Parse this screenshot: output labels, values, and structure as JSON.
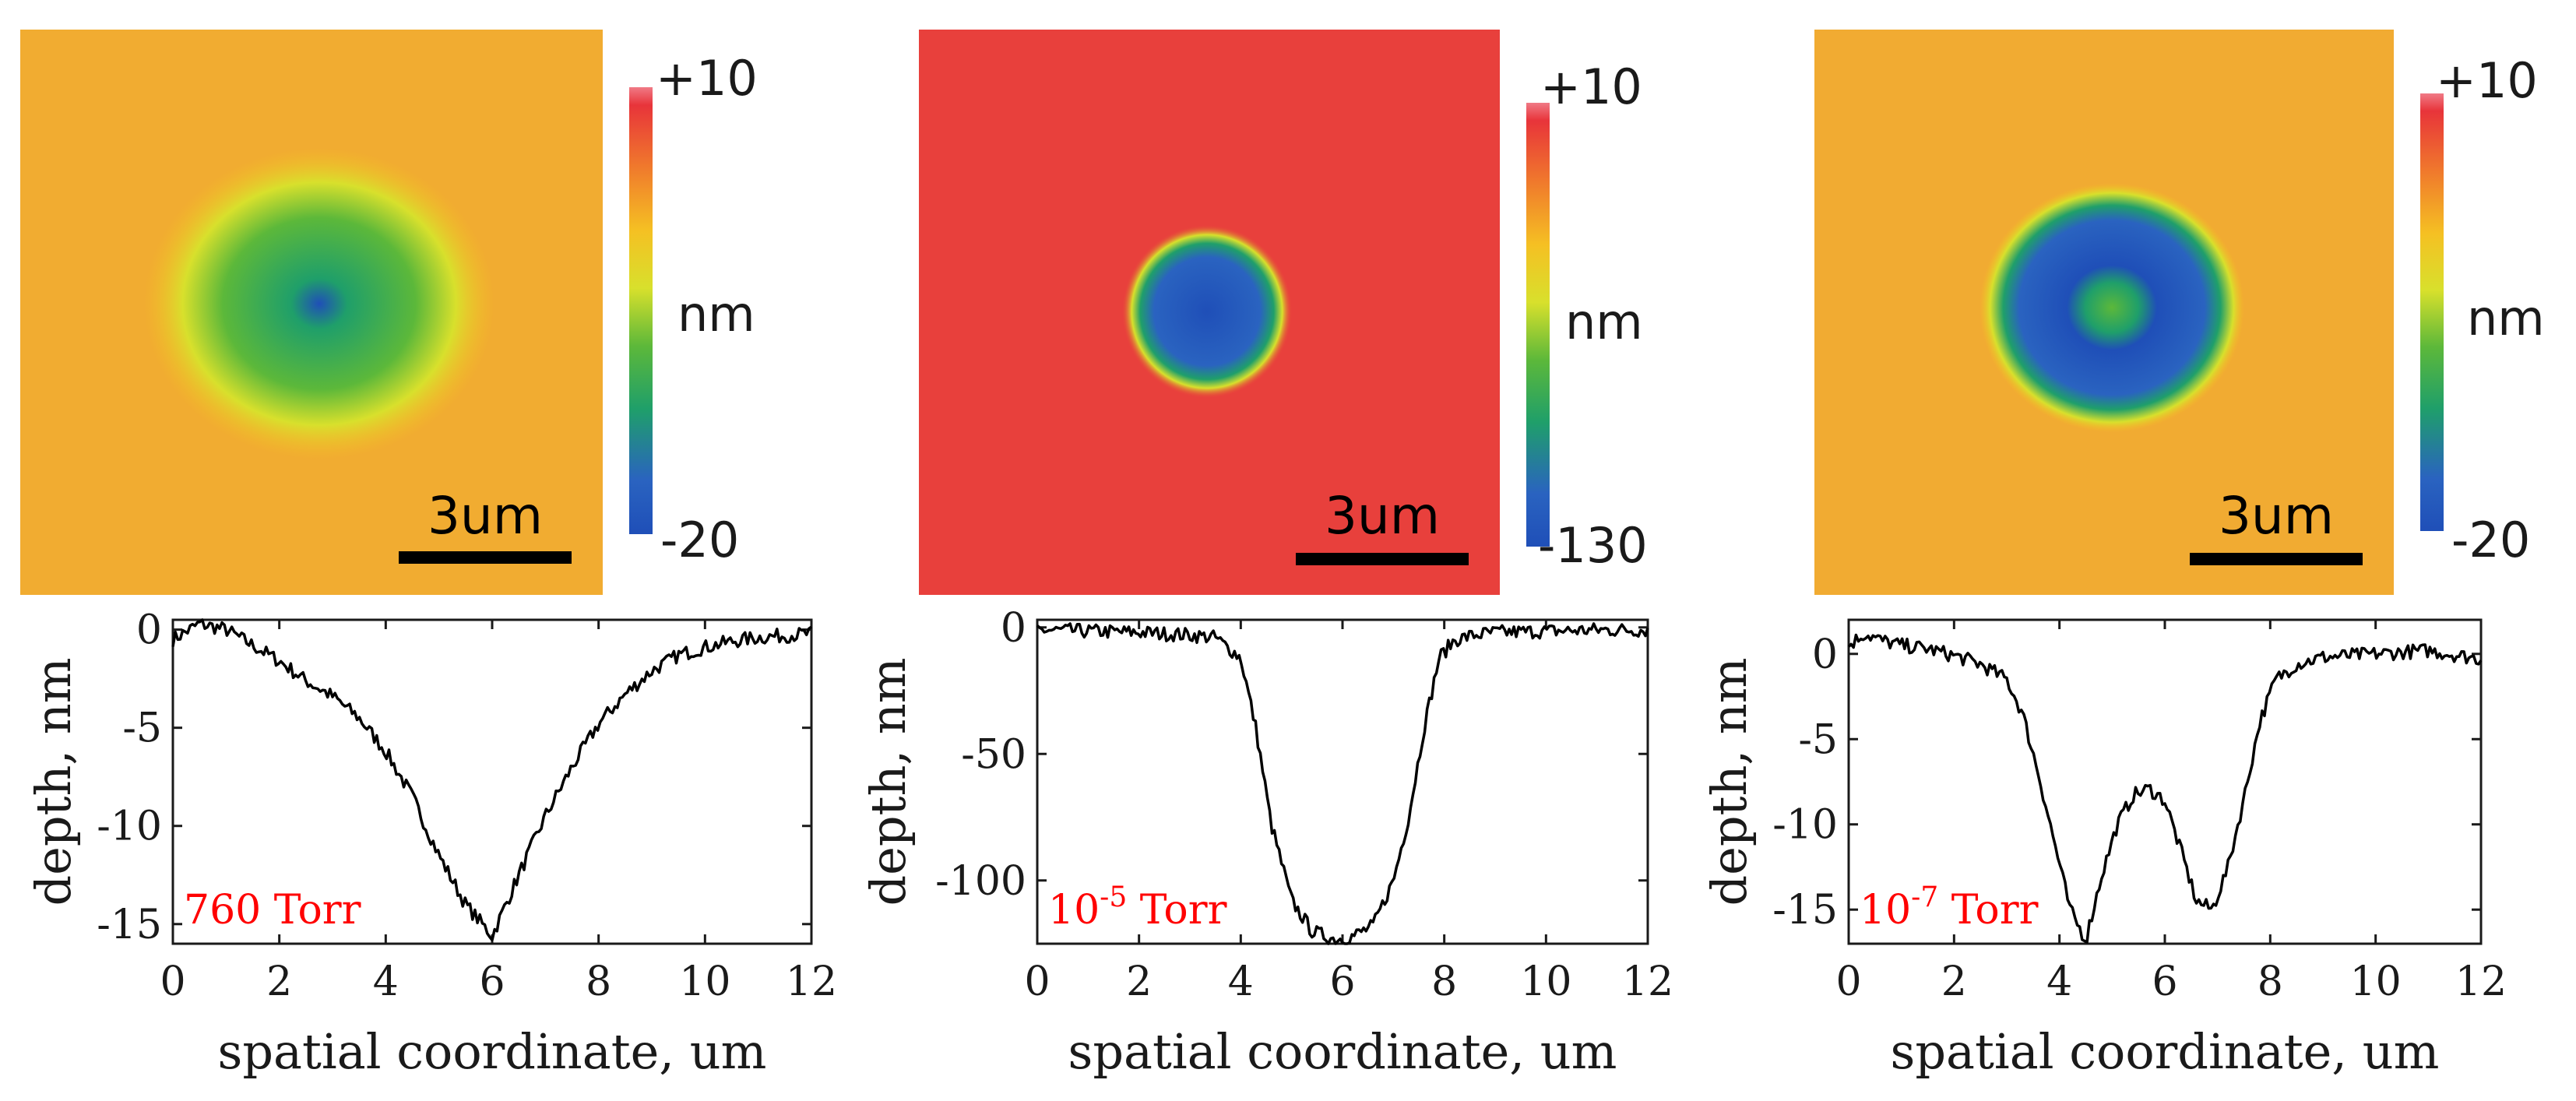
{
  "chart_data": [
    {
      "type": "heatmap",
      "title": "",
      "colorbar": {
        "max_label": "+10",
        "min_label": "-20",
        "unit_label": "nm",
        "range": [
          -20,
          10
        ]
      },
      "scale_bar_label": "3um",
      "feature": {
        "shape": "shallow broad depression with deeper center",
        "background_value": 2
      }
    },
    {
      "type": "heatmap",
      "title": "",
      "colorbar": {
        "max_label": "+10",
        "min_label": "-130",
        "unit_label": "nm",
        "range": [
          -130,
          10
        ]
      },
      "scale_bar_label": "3um",
      "feature": {
        "shape": "deep compact crater",
        "background_value": 8
      }
    },
    {
      "type": "heatmap",
      "title": "",
      "colorbar": {
        "max_label": "+10",
        "min_label": "-20",
        "unit_label": "nm",
        "range": [
          -20,
          10
        ]
      },
      "scale_bar_label": "3um",
      "feature": {
        "shape": "ring-shaped crater with raised center",
        "background_value": 2
      }
    },
    {
      "type": "line",
      "annotation": {
        "base": "760",
        "sup": "",
        "suffix": " Torr"
      },
      "xlabel": "spatial coordinate, um",
      "ylabel": "depth, nm",
      "xlim": [
        0,
        12
      ],
      "ylim": [
        -16,
        0.5
      ],
      "xticks": [
        0,
        2,
        4,
        6,
        8,
        10,
        12
      ],
      "xtick_labels": [
        "0",
        "2",
        "4",
        "6",
        "8",
        "10",
        "12"
      ],
      "yticks": [
        0,
        -5,
        -10,
        -15
      ],
      "ytick_labels": [
        "0",
        "-5",
        "-10",
        "-15"
      ],
      "series": [
        {
          "name": "760 Torr",
          "x": [
            0,
            0.5,
            1.0,
            1.5,
            2.0,
            2.5,
            3.0,
            3.5,
            4.0,
            4.5,
            5.0,
            5.5,
            6.0,
            6.5,
            7.0,
            7.5,
            8.0,
            8.5,
            9.0,
            9.5,
            10.0,
            10.5,
            11.0,
            11.5,
            12.0
          ],
          "y": [
            -0.5,
            0.3,
            0.0,
            -0.8,
            -1.6,
            -2.6,
            -3.4,
            -4.5,
            -6.2,
            -8.5,
            -11.5,
            -14.0,
            -15.6,
            -12.5,
            -9.5,
            -7.0,
            -4.8,
            -3.3,
            -2.1,
            -1.3,
            -0.9,
            -0.6,
            -0.4,
            -0.3,
            -0.2
          ],
          "noise": 0.4
        }
      ]
    },
    {
      "type": "line",
      "annotation": {
        "base": "10",
        "sup": "-5",
        "suffix": " Torr"
      },
      "xlabel": "spatial coordinate, um",
      "ylabel": "depth, nm",
      "xlim": [
        0,
        12
      ],
      "ylim": [
        -125,
        3
      ],
      "xticks": [
        0,
        2,
        4,
        6,
        8,
        10,
        12
      ],
      "xtick_labels": [
        "0",
        "2",
        "4",
        "6",
        "8",
        "10",
        "12"
      ],
      "yticks": [
        0,
        -50,
        -100
      ],
      "ytick_labels": [
        "0",
        "-50",
        "-100"
      ],
      "series": [
        {
          "name": "10^-5 Torr",
          "x": [
            0,
            1.0,
            2.0,
            3.0,
            3.5,
            4.0,
            4.3,
            4.6,
            5.0,
            5.4,
            5.8,
            6.0,
            6.2,
            6.6,
            7.0,
            7.3,
            7.6,
            7.9,
            8.2,
            8.6,
            9.0,
            10.0,
            11.0,
            12.0
          ],
          "y": [
            -1,
            -1.5,
            -2,
            -3,
            -4,
            -12,
            -40,
            -78,
            -108,
            -120,
            -123,
            -123,
            -122,
            -118,
            -100,
            -75,
            -40,
            -12,
            -5,
            -3,
            -2,
            -1.5,
            -1,
            -1
          ],
          "noise": 0.4
        }
      ]
    },
    {
      "type": "line",
      "annotation": {
        "base": "10",
        "sup": "-7",
        "suffix": " Torr"
      },
      "xlabel": "spatial coordinate, um",
      "ylabel": "depth, nm",
      "xlim": [
        0,
        12
      ],
      "ylim": [
        -17,
        2
      ],
      "xticks": [
        0,
        2,
        4,
        6,
        8,
        10,
        12
      ],
      "xtick_labels": [
        "0",
        "2",
        "4",
        "6",
        "8",
        "10",
        "12"
      ],
      "yticks": [
        0,
        -5,
        -10,
        -15
      ],
      "ytick_labels": [
        "0",
        "-5",
        "-10",
        "-15"
      ],
      "series": [
        {
          "name": "10^-7 Torr",
          "x": [
            0,
            0.3,
            0.6,
            1.0,
            1.5,
            2.0,
            2.5,
            3.0,
            3.3,
            3.6,
            3.9,
            4.2,
            4.5,
            4.8,
            5.1,
            5.4,
            5.7,
            6.0,
            6.3,
            6.6,
            6.9,
            7.2,
            7.5,
            7.8,
            8.1,
            8.5,
            9.0,
            10.0,
            11.0,
            12.0
          ],
          "y": [
            0.5,
            1.2,
            0.8,
            0.5,
            0.3,
            -0.1,
            -0.6,
            -1.5,
            -3.5,
            -7.0,
            -11.0,
            -15.0,
            -16.8,
            -13.0,
            -10.0,
            -8.3,
            -7.9,
            -8.6,
            -11.5,
            -14.5,
            -15.0,
            -12.5,
            -8.5,
            -4.0,
            -1.5,
            -0.6,
            -0.2,
            0.0,
            0.2,
            -0.3
          ],
          "noise": 0.4
        }
      ]
    }
  ]
}
